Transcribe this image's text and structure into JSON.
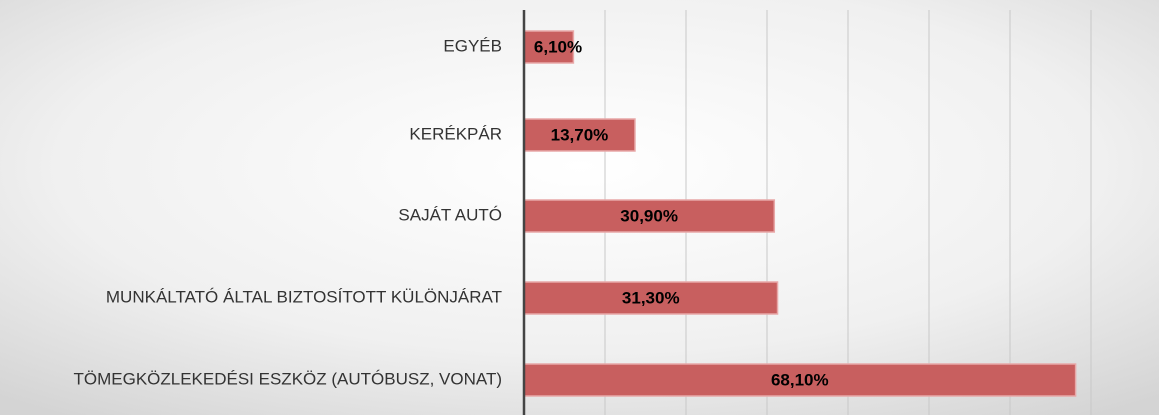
{
  "chart_data": {
    "type": "bar",
    "orientation": "horizontal",
    "categories": [
      "EGYÉB",
      "KERÉKPÁR",
      "SAJÁT AUTÓ",
      "MUNKÁLTATÓ ÁLTAL BIZTOSÍTOTT KÜLÖNJÁRAT",
      "TÖMEGKÖZLEKEDÉSI ESZKÖZ (AUTÓBUSZ, VONAT)"
    ],
    "values": [
      6.1,
      13.7,
      30.9,
      31.3,
      68.1
    ],
    "value_labels": [
      "6,10%",
      "13,70%",
      "30,90%",
      "31,30%",
      "68,10%"
    ],
    "color": "#c85f5f",
    "xlim": [
      0,
      70
    ],
    "xticks": [
      0,
      10,
      20,
      30,
      40,
      50,
      60,
      70
    ],
    "grid": true
  }
}
